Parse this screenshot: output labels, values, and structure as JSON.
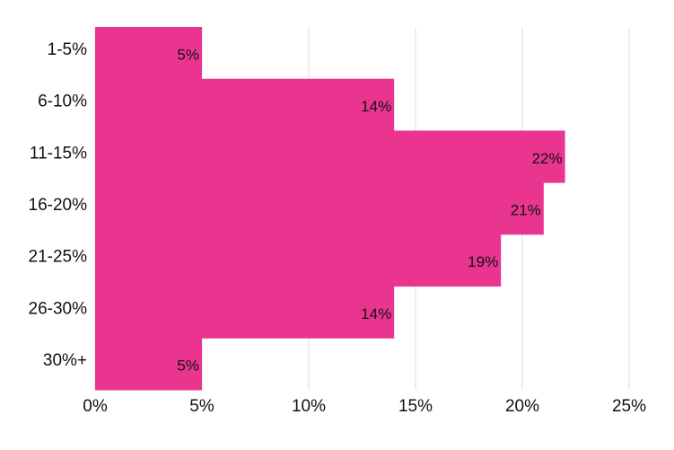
{
  "chart_data": {
    "type": "bar",
    "orientation": "horizontal",
    "categories": [
      "1-5%",
      "6-10%",
      "11-15%",
      "16-20%",
      "21-25%",
      "26-30%",
      "30%+"
    ],
    "values": [
      5,
      14,
      22,
      21,
      19,
      14,
      5
    ],
    "value_labels": [
      "5%",
      "14%",
      "22%",
      "21%",
      "19%",
      "14%",
      "5%"
    ],
    "color": "#ea3590",
    "xlim": [
      0,
      25
    ],
    "xticks": [
      {
        "value": 0,
        "label": "0%"
      },
      {
        "value": 5,
        "label": "5%"
      },
      {
        "value": 10,
        "label": "10%"
      },
      {
        "value": 15,
        "label": "15%"
      },
      {
        "value": 20,
        "label": "20%"
      },
      {
        "value": 25,
        "label": "25%"
      }
    ],
    "grid": true
  }
}
